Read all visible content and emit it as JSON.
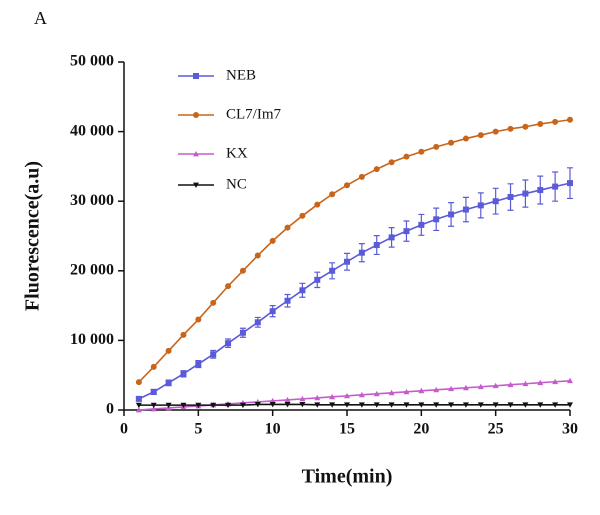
{
  "panel_label": "A",
  "chart_data": {
    "type": "line",
    "xlabel": "Time(min)",
    "ylabel": "Fluorescence(a.u)",
    "x": [
      1,
      2,
      3,
      4,
      5,
      6,
      7,
      8,
      9,
      10,
      11,
      12,
      13,
      14,
      15,
      16,
      17,
      18,
      19,
      20,
      21,
      22,
      23,
      24,
      25,
      26,
      27,
      28,
      29,
      30
    ],
    "series": [
      {
        "name": "NEB",
        "color": "#5b5bd9",
        "marker": "square",
        "values": [
          1600,
          2600,
          3900,
          5200,
          6600,
          8000,
          9600,
          11100,
          12600,
          14200,
          15700,
          17200,
          18700,
          20000,
          21300,
          22600,
          23700,
          24800,
          25700,
          26600,
          27400,
          28100,
          28800,
          29400,
          30000,
          30600,
          31100,
          31600,
          32100,
          32600
        ],
        "errors": [
          300,
          350,
          400,
          450,
          500,
          550,
          600,
          650,
          700,
          800,
          900,
          1000,
          1100,
          1150,
          1200,
          1300,
          1350,
          1400,
          1450,
          1500,
          1600,
          1700,
          1750,
          1800,
          1850,
          1900,
          1950,
          2000,
          2100,
          2200
        ]
      },
      {
        "name": "CL7/Im7",
        "color": "#c8651b",
        "marker": "circle",
        "values": [
          4000,
          6200,
          8500,
          10800,
          13000,
          15400,
          17800,
          20000,
          22200,
          24300,
          26200,
          27900,
          29500,
          31000,
          32300,
          33500,
          34600,
          35600,
          36400,
          37100,
          37800,
          38400,
          39000,
          39500,
          40000,
          40400,
          40700,
          41100,
          41400,
          41700
        ]
      },
      {
        "name": "KX",
        "color": "#c45ccc",
        "marker": "triangle-up",
        "values": [
          0,
          150,
          290,
          440,
          580,
          730,
          870,
          1020,
          1160,
          1310,
          1450,
          1600,
          1740,
          1890,
          2030,
          2180,
          2320,
          2470,
          2610,
          2760,
          2900,
          3050,
          3190,
          3340,
          3480,
          3630,
          3770,
          3920,
          4060,
          4200
        ]
      },
      {
        "name": "NC",
        "color": "#111111",
        "marker": "triangle-down",
        "values": [
          700,
          700,
          700,
          700,
          700,
          700,
          700,
          700,
          800,
          800,
          800,
          800,
          750,
          750,
          750,
          750,
          750,
          750,
          750,
          750,
          750,
          750,
          750,
          750,
          750,
          750,
          750,
          750,
          750,
          750
        ]
      }
    ],
    "xlim": [
      0,
      30
    ],
    "xticks": [
      0,
      5,
      10,
      15,
      20,
      25,
      30
    ],
    "ylim": [
      0,
      50000
    ],
    "yticks": [
      {
        "value": 0,
        "label": "0"
      },
      {
        "value": 10000,
        "label": "10 000"
      },
      {
        "value": 20000,
        "label": "20 000"
      },
      {
        "value": 30000,
        "label": "30 000"
      },
      {
        "value": 40000,
        "label": "40 000"
      },
      {
        "value": 50000,
        "label": "50 000"
      }
    ],
    "legend": "upper left"
  }
}
